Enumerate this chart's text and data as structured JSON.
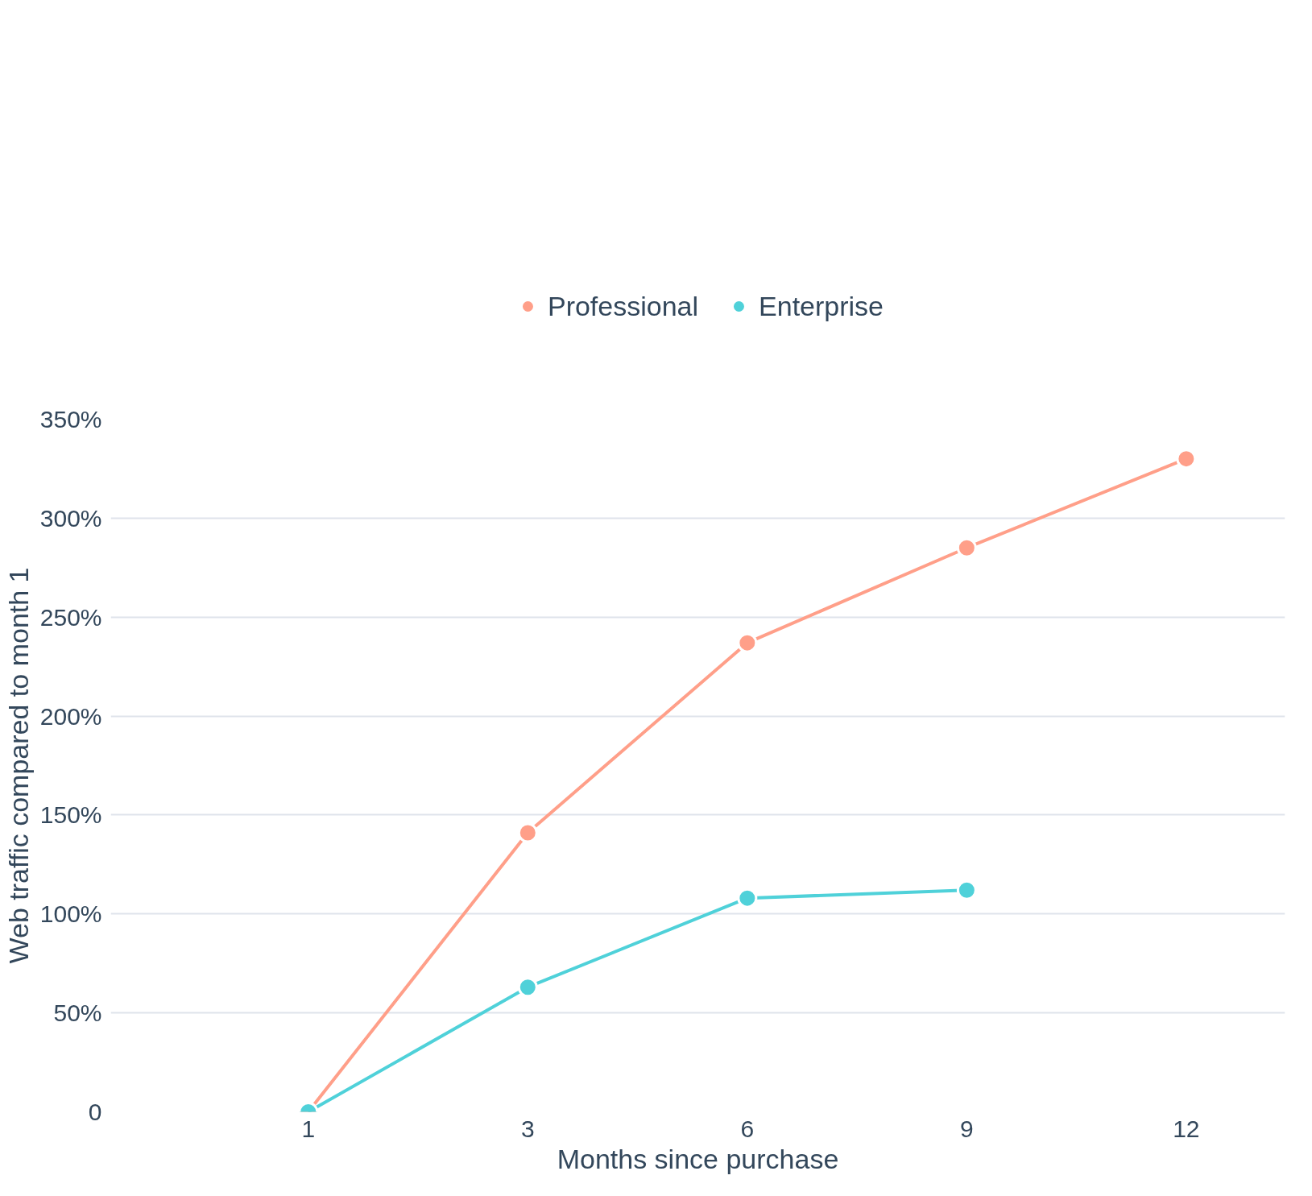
{
  "chart_data": {
    "type": "line",
    "xlabel": "Months since purchase",
    "ylabel": "Web traffic compared to month 1",
    "categories": [
      "1",
      "3",
      "6",
      "9",
      "12"
    ],
    "series": [
      {
        "name": "Professional",
        "color": "#ff9f89",
        "values": [
          0,
          141,
          237,
          285,
          330
        ]
      },
      {
        "name": "Enterprise",
        "color": "#4fd1d9",
        "values": [
          0,
          63,
          108,
          112,
          null
        ]
      }
    ],
    "ylim": [
      0,
      350
    ],
    "yticks": [
      0,
      {
        "value": 50,
        "label": "50%"
      },
      {
        "value": 100,
        "label": "100%"
      },
      {
        "value": 150,
        "label": "150%"
      },
      {
        "value": 200,
        "label": "200%"
      },
      {
        "value": 250,
        "label": "250%"
      },
      {
        "value": 300,
        "label": "300%"
      },
      {
        "value": 350,
        "label": "350%"
      }
    ],
    "grid": "y",
    "legend": "top",
    "marker": "circle",
    "line_style": "solid"
  }
}
